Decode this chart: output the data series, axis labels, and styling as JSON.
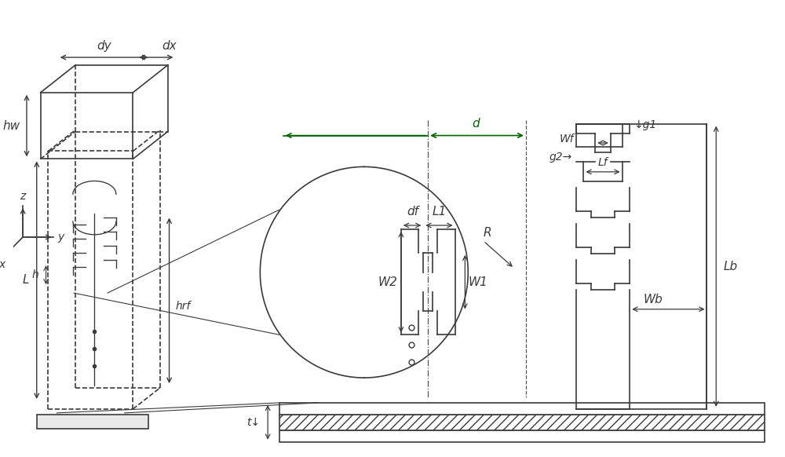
{
  "bg_color": "#ffffff",
  "line_color": "#3a3a3a",
  "line_width": 1.2,
  "fig_width": 10.0,
  "fig_height": 5.82,
  "labels": {
    "dy": "dy",
    "dx": "dx",
    "hw": "hw",
    "hrf": "hrf",
    "L": "L",
    "h": "h",
    "z": "z",
    "y": "y",
    "x": "x",
    "d": "d",
    "dfl": "df",
    "L1": "L1",
    "W1": "W1",
    "W2": "W2",
    "R": "R",
    "g1": "g1",
    "g2": "g2",
    "Wf": "Wf",
    "Lf": "Lf",
    "Wb": "Wb",
    "Lb": "Lb",
    "t": "t"
  },
  "font_size": 11
}
